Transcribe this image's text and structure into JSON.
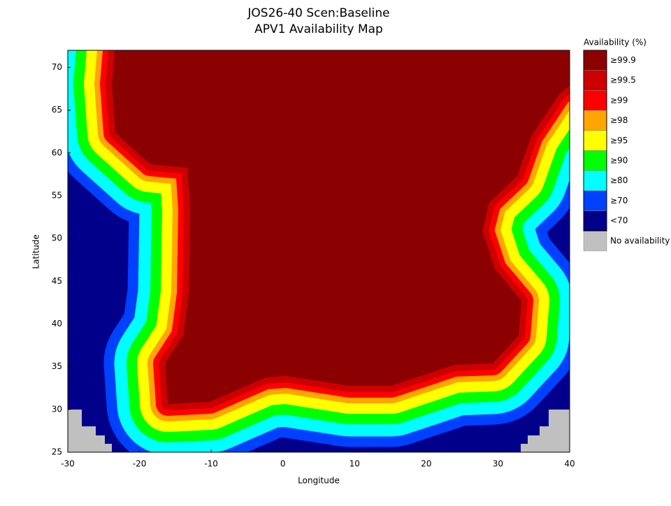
{
  "chart_data": {
    "type": "contour_map",
    "title": [
      "JOS26-40 Scen:Baseline",
      "APV1 Availability Map"
    ],
    "xlabel": "Longitude",
    "ylabel": "Latitude",
    "xlim": [
      -30,
      40
    ],
    "ylim": [
      25,
      72
    ],
    "xticks": [
      -30,
      -20,
      -10,
      0,
      10,
      20,
      30,
      40
    ],
    "yticks": [
      25,
      30,
      35,
      40,
      45,
      50,
      55,
      60,
      65,
      70
    ],
    "legend": {
      "title": "Availability (%)",
      "items": [
        {
          "label": "≥99.9",
          "color": "#8b0000"
        },
        {
          "label": "≥99.5",
          "color": "#cc0000"
        },
        {
          "label": "≥99",
          "color": "#ff0000"
        },
        {
          "label": "≥98",
          "color": "#ffa500"
        },
        {
          "label": "≥95",
          "color": "#ffff00"
        },
        {
          "label": "≥90",
          "color": "#00ff00"
        },
        {
          "label": "≥80",
          "color": "#00ffff"
        },
        {
          "label": "≥70",
          "color": "#0040ff"
        },
        {
          "label": "<70",
          "color": "#00008b"
        },
        {
          "label": "No availability",
          "color": "#c0c0c0"
        }
      ]
    }
  }
}
